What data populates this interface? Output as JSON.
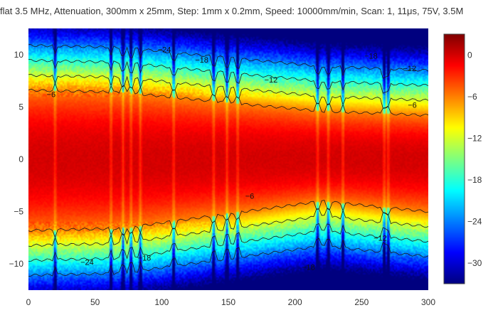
{
  "chart_data": {
    "type": "heatmap",
    "title": "flat 3.5 MHz, Attenuation, 300mm x 25mm, Step: 1mm x 0.2mm, Speed: 10000mm/min, Scan: 1, 11μs, 75V, 3.5M",
    "xlabel": "",
    "ylabel": "",
    "x_range": [
      0,
      300
    ],
    "y_range": [
      -12.5,
      12.5
    ],
    "x_ticks": [
      0,
      50,
      100,
      150,
      200,
      250,
      300
    ],
    "y_ticks": [
      -10,
      -5,
      0,
      5,
      10
    ],
    "x_tick_labels": [
      "0",
      "50",
      "100",
      "150",
      "200",
      "250",
      "300"
    ],
    "y_tick_labels": [
      "−10",
      "−5",
      "0",
      "5",
      "10"
    ],
    "colorbar": {
      "range": [
        -33,
        3
      ],
      "ticks": [
        0,
        -6,
        -12,
        -18,
        -24,
        -30
      ],
      "tick_labels": [
        "0",
        "−6",
        "−12",
        "−18",
        "−24",
        "−30"
      ],
      "colorscale": [
        "#00007f",
        "#0000ff",
        "#007fff",
        "#00ffff",
        "#7fff7f",
        "#ffff00",
        "#ff7f00",
        "#ff0000",
        "#7f0000"
      ]
    },
    "contour_levels": [
      -6,
      -12,
      -18,
      -24
    ],
    "contour_labels": [
      {
        "text": "−24",
        "x": 102,
        "y": 10.5
      },
      {
        "text": "−18",
        "x": 130,
        "y": 9.5
      },
      {
        "text": "−12",
        "x": 182,
        "y": 7.6
      },
      {
        "text": "−6",
        "x": 17,
        "y": 6.2
      },
      {
        "text": "−6",
        "x": 166,
        "y": -3.5
      },
      {
        "text": "−18",
        "x": 257,
        "y": 9.9
      },
      {
        "text": "−12",
        "x": 286,
        "y": 8.7
      },
      {
        "text": "−6",
        "x": 288,
        "y": 5.2
      },
      {
        "text": "−12",
        "x": 264,
        "y": -7.5
      },
      {
        "text": "−24",
        "x": 44,
        "y": -9.8
      },
      {
        "text": "−18",
        "x": 87,
        "y": -9.4
      },
      {
        "text": "−18",
        "x": 210,
        "y": -10.3
      }
    ],
    "model": {
      "peak_db": 0,
      "slope_db_per_mm": 0.52,
      "edge_db": -6,
      "halfwidth_mm": [
        [
          0,
          6.6
        ],
        [
          70,
          6.4
        ],
        [
          150,
          5.4
        ],
        [
          220,
          4.6
        ],
        [
          300,
          4.2
        ]
      ],
      "lower_halfwidth_mm": [
        [
          0,
          6.8
        ],
        [
          70,
          6.6
        ],
        [
          150,
          5.2
        ],
        [
          220,
          4.0
        ],
        [
          300,
          5.0
        ]
      ],
      "artifact_columns_x": [
        20,
        62,
        71,
        77,
        84,
        109,
        139,
        149,
        157,
        217,
        225,
        236,
        267,
        270
      ]
    }
  }
}
